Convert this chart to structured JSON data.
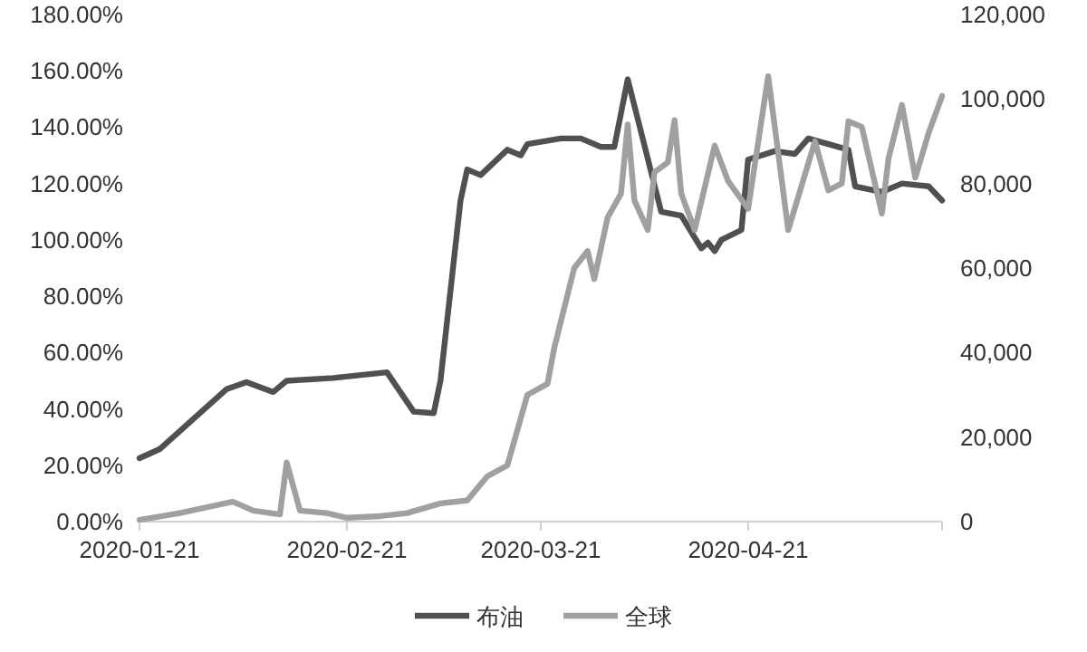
{
  "chart_data": {
    "type": "line",
    "xlim": [
      "2020-01-21",
      "2020-05-20"
    ],
    "xticks": [
      "2020-01-21",
      "2020-02-21",
      "2020-03-21",
      "2020-04-21"
    ],
    "ylim": [
      0,
      180
    ],
    "yticks": [
      {
        "value": 0,
        "label": "0.00%"
      },
      {
        "value": 20,
        "label": "20.00%"
      },
      {
        "value": 40,
        "label": "40.00%"
      },
      {
        "value": 60,
        "label": "60.00%"
      },
      {
        "value": 80,
        "label": "80.00%"
      },
      {
        "value": 100,
        "label": "100.00%"
      },
      {
        "value": 120,
        "label": "120.00%"
      },
      {
        "value": 140,
        "label": "140.00%"
      },
      {
        "value": 160,
        "label": "160.00%"
      },
      {
        "value": 180,
        "label": "180.00%"
      }
    ],
    "y2lim": [
      0,
      120000
    ],
    "y2ticks": [
      {
        "value": 0,
        "label": "0"
      },
      {
        "value": 20000,
        "label": "20,000"
      },
      {
        "value": 40000,
        "label": "40,000"
      },
      {
        "value": 60000,
        "label": "60,000"
      },
      {
        "value": 80000,
        "label": "80,000"
      },
      {
        "value": 100000,
        "label": "100,000"
      },
      {
        "value": 120000,
        "label": "120,000"
      }
    ],
    "grid": false,
    "legend": "bottom",
    "marker": "none",
    "line_style": "solid",
    "series": [
      {
        "name": "布油",
        "color": "#505050",
        "x": [
          "2020-01-21",
          "2020-01-24",
          "2020-02-03",
          "2020-02-06",
          "2020-02-10",
          "2020-02-12",
          "2020-02-19",
          "2020-02-27",
          "2020-03-02",
          "2020-03-05",
          "2020-03-06",
          "2020-03-09",
          "2020-03-10",
          "2020-03-12",
          "2020-03-16",
          "2020-03-18",
          "2020-03-19",
          "2020-03-24",
          "2020-03-27",
          "2020-03-30",
          "2020-04-01",
          "2020-04-03",
          "2020-04-08",
          "2020-04-11",
          "2020-04-14",
          "2020-04-15",
          "2020-04-16",
          "2020-04-17",
          "2020-04-20",
          "2020-04-21",
          "2020-04-25",
          "2020-04-28",
          "2020-04-30",
          "2020-05-06",
          "2020-05-07",
          "2020-05-11",
          "2020-05-14",
          "2020-05-18",
          "2020-05-20"
        ],
        "values": [
          22.5,
          25.7,
          47,
          49.5,
          46,
          50,
          51,
          53,
          39,
          38.5,
          50,
          114,
          125,
          123,
          132,
          130,
          134,
          136,
          136,
          133,
          133,
          157,
          110,
          108.6,
          97,
          99,
          96,
          100,
          103.5,
          128.5,
          131.5,
          130.5,
          136,
          132,
          119,
          117,
          120,
          119,
          114
        ]
      },
      {
        "name": "全球",
        "color": "#a0a0a0",
        "axis": "y2",
        "x": [
          "2020-01-21",
          "2020-01-27",
          "2020-02-04",
          "2020-02-07",
          "2020-02-11",
          "2020-02-12",
          "2020-02-14",
          "2020-02-18",
          "2020-02-21",
          "2020-02-26",
          "2020-03-01",
          "2020-03-06",
          "2020-03-10",
          "2020-03-13",
          "2020-03-16",
          "2020-03-19",
          "2020-03-22",
          "2020-03-23",
          "2020-03-26",
          "2020-03-28",
          "2020-03-29",
          "2020-03-31",
          "2020-04-02",
          "2020-04-03",
          "2020-04-04",
          "2020-04-06",
          "2020-04-07",
          "2020-04-09",
          "2020-04-10",
          "2020-04-11",
          "2020-04-13",
          "2020-04-16",
          "2020-04-18",
          "2020-04-21",
          "2020-04-24",
          "2020-04-27",
          "2020-05-01",
          "2020-05-03",
          "2020-05-05",
          "2020-05-06",
          "2020-05-08",
          "2020-05-11",
          "2020-05-12",
          "2020-05-14",
          "2020-05-16",
          "2020-05-18",
          "2020-05-20"
        ],
        "values": [
          400,
          2000,
          4700,
          2600,
          1700,
          14000,
          2600,
          2000,
          900,
          1300,
          2000,
          4300,
          5000,
          10700,
          13300,
          30000,
          32600,
          41000,
          60000,
          64000,
          57400,
          72000,
          77600,
          94000,
          76000,
          69000,
          82700,
          85000,
          95000,
          77600,
          69000,
          89000,
          80600,
          74000,
          105400,
          69000,
          90000,
          78400,
          80000,
          94700,
          93400,
          72900,
          86000,
          98600,
          81400,
          92000,
          100700
        ]
      }
    ]
  }
}
